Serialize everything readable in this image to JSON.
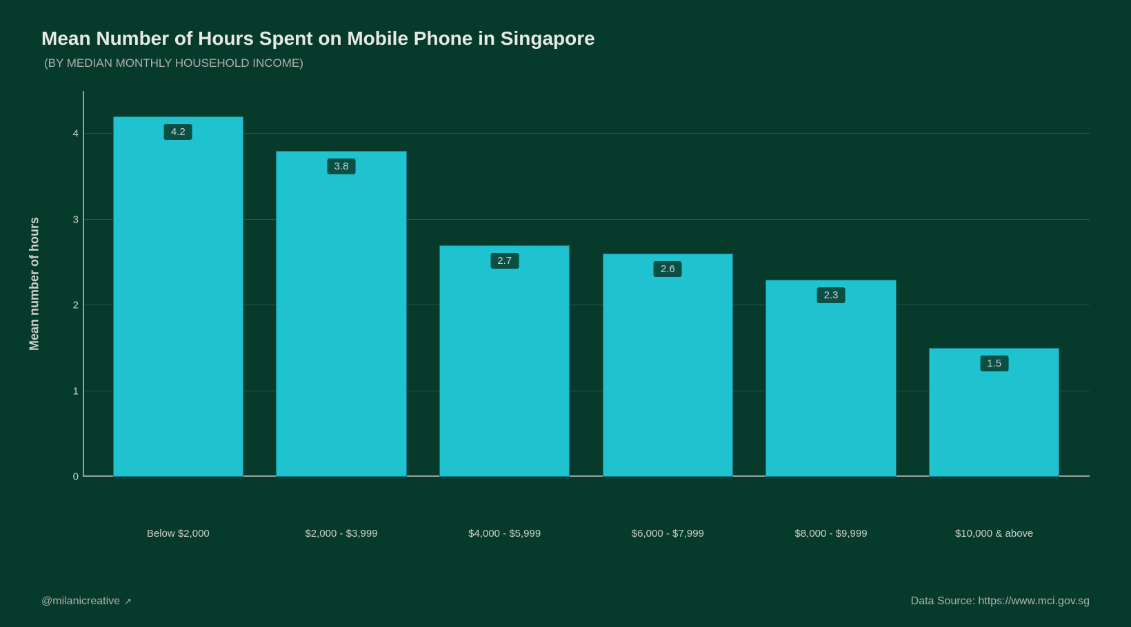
{
  "title": "Mean Number of Hours Spent on Mobile Phone in Singapore",
  "subtitle": "(BY MEDIAN MONTHLY HOUSEHOLD INCOME)",
  "yaxis_label": "Mean number of hours",
  "chart": {
    "type": "bar",
    "categories": [
      "Below $2,000",
      "$2,000 - $3,999",
      "$4,000 - $5,999",
      "$6,000 - $7,999",
      "$8,000 - $9,999",
      "$10,000 & above"
    ],
    "values": [
      4.2,
      3.8,
      2.7,
      2.6,
      2.3,
      1.5
    ],
    "ylim": [
      0,
      4.5
    ],
    "yticks": [
      0,
      1,
      2,
      3,
      4
    ],
    "bar_color": "#1ec3cf",
    "background_color": "#063b2b",
    "grid_color": "#2a554a",
    "axis_color": "#9aa0a0",
    "text_color": "#cfcfcf",
    "title_fontsize": 28,
    "subtitle_fontsize": 17,
    "label_fontsize": 15,
    "bar_width": 0.8
  },
  "footer_left": "@milanicreative",
  "footer_left_icon": "↗",
  "footer_right": "Data Source: https://www.mci.gov.sg"
}
